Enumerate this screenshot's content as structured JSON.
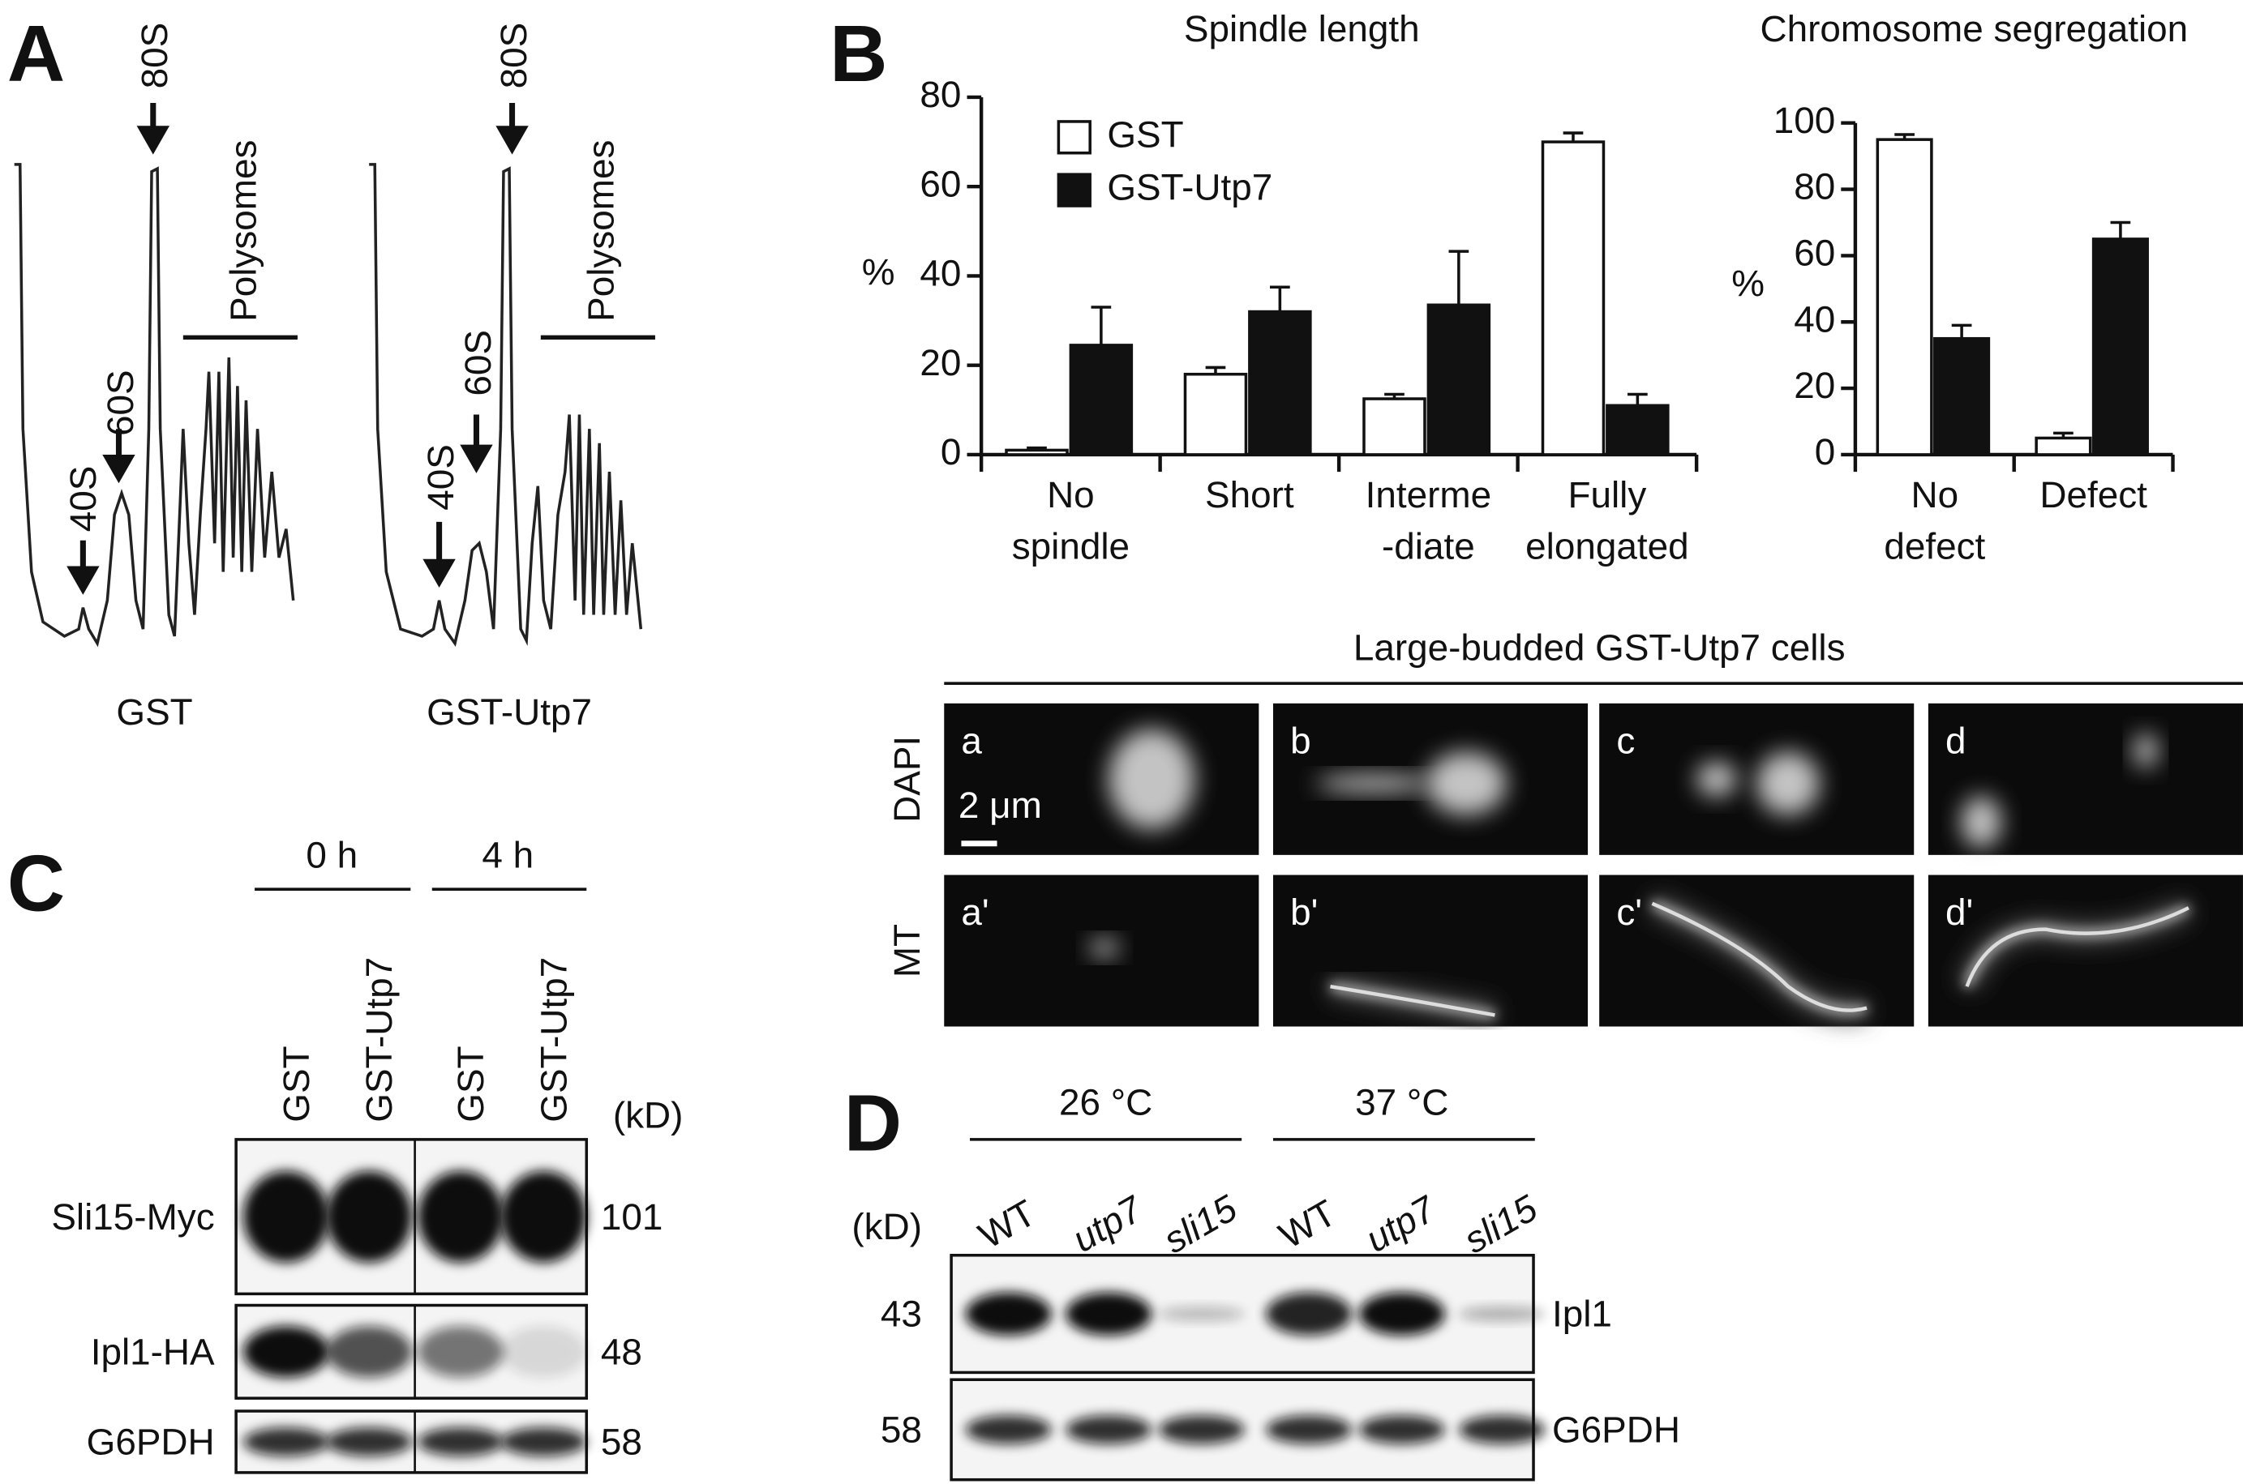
{
  "panel_a": {
    "label": "A",
    "profiles": [
      {
        "peaks": [
          "40S",
          "60S",
          "80S"
        ],
        "polysomes": "Polysomes",
        "name": "GST"
      },
      {
        "peaks": [
          "40S",
          "60S",
          "80S"
        ],
        "polysomes": "Polysomes",
        "name": "GST-Utp7"
      }
    ]
  },
  "panel_b": {
    "label": "B",
    "microscopy": {
      "title": "Large-budded GST-Utp7 cells",
      "rows": [
        "DAPI",
        "MT"
      ],
      "cells": [
        [
          "a",
          "b",
          "c",
          "d"
        ],
        [
          "a'",
          "b'",
          "c'",
          "d'"
        ]
      ],
      "scale_bar": "2 μm"
    }
  },
  "chart_data": [
    {
      "type": "bar",
      "title": "Spindle length",
      "ylabel": "%",
      "categories": [
        [
          "No",
          "spindle"
        ],
        [
          "Short"
        ],
        [
          "Interme",
          "-diate"
        ],
        [
          "Fully",
          "elongated"
        ]
      ],
      "series": [
        {
          "name": "GST",
          "color": "#ffffff",
          "values": [
            1,
            18,
            12.5,
            70
          ],
          "errors": [
            0.5,
            1.5,
            1,
            2
          ]
        },
        {
          "name": "GST-Utp7",
          "color": "#111111",
          "values": [
            24.5,
            32,
            33.5,
            11
          ],
          "errors": [
            8.5,
            5.5,
            12,
            2.5
          ]
        }
      ],
      "ylim": [
        0,
        80
      ],
      "yticks": [
        0,
        20,
        40,
        60,
        80
      ],
      "legend": "upper left"
    },
    {
      "type": "bar",
      "title": "Chromosome segregation",
      "ylabel": "%",
      "categories": [
        [
          "No",
          "defect"
        ],
        [
          "Defect"
        ]
      ],
      "series": [
        {
          "color": "#ffffff",
          "values": [
            95,
            5
          ],
          "errors": [
            1.5,
            1.5
          ]
        },
        {
          "color": "#111111",
          "values": [
            35,
            65
          ],
          "errors": [
            4,
            5
          ]
        }
      ],
      "ylim": [
        0,
        100
      ],
      "yticks": [
        0,
        20,
        40,
        60,
        80,
        100
      ]
    }
  ],
  "panel_c": {
    "label": "C",
    "timepoints": [
      "0 h",
      "4 h"
    ],
    "lanes": [
      "GST",
      "GST-Utp7",
      "GST",
      "GST-Utp7"
    ],
    "unit": "(kD)",
    "rows": [
      {
        "name": "Sli15-Myc",
        "kd": "101"
      },
      {
        "name": "Ipl1-HA",
        "kd": "48"
      },
      {
        "name": "G6PDH",
        "kd": "58"
      }
    ]
  },
  "panel_d": {
    "label": "D",
    "temperatures": [
      "26 °C",
      "37 °C"
    ],
    "unit": "(kD)",
    "lanes": [
      "WT",
      "utp7",
      "sli15",
      "WT",
      "utp7",
      "sli15"
    ],
    "rows": [
      {
        "kd": "43",
        "name": "Ipl1"
      },
      {
        "kd": "58",
        "name": "G6PDH"
      }
    ]
  }
}
